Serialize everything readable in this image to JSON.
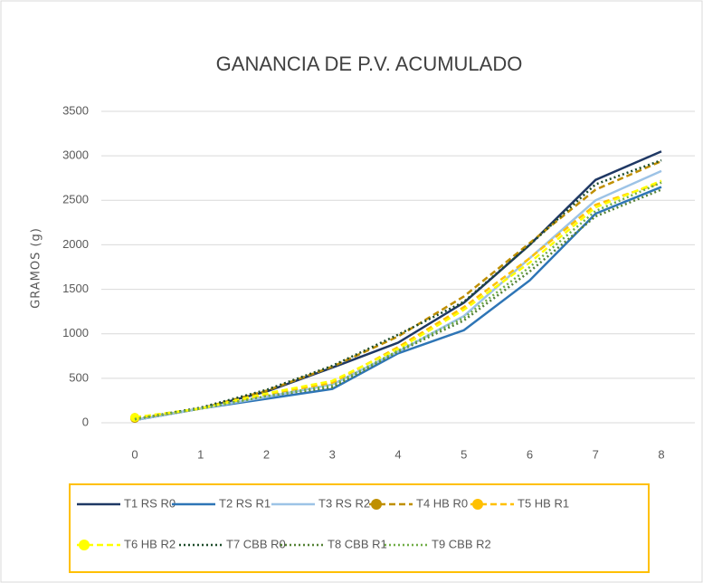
{
  "chart_data": {
    "type": "line",
    "title": "GANANCIA DE P.V. ACUMULADO",
    "y_label": "GRAMOS (g)",
    "x": [
      0,
      1,
      2,
      3,
      4,
      5,
      6,
      7,
      8
    ],
    "xlim": [
      0,
      8
    ],
    "xticks": [
      0,
      1,
      2,
      3,
      4,
      5,
      6,
      7,
      8
    ],
    "ylim": [
      0,
      3500
    ],
    "yticks": [
      0,
      500,
      1000,
      1500,
      2000,
      2500,
      3000,
      3500
    ],
    "grid": true,
    "legend": "bottom",
    "series": [
      {
        "name": "T1 RS R0",
        "color": "#1f3864",
        "dash": "solid",
        "values": [
          30,
          160,
          350,
          620,
          900,
          1350,
          2000,
          2730,
          3050
        ]
      },
      {
        "name": "T2 RS R1",
        "color": "#2e75b6",
        "dash": "solid",
        "values": [
          30,
          160,
          270,
          380,
          780,
          1040,
          1600,
          2350,
          2650
        ]
      },
      {
        "name": "T3 RS R2",
        "color": "#9dc3e6",
        "dash": "solid",
        "values": [
          30,
          160,
          290,
          430,
          800,
          1200,
          1850,
          2500,
          2830
        ]
      },
      {
        "name": "T4 HB R0",
        "color": "#bf8f00",
        "dash": "dashed",
        "marker": "circle",
        "values": [
          50,
          160,
          360,
          630,
          970,
          1420,
          2020,
          2620,
          2940
        ]
      },
      {
        "name": "T5 HB R1",
        "color": "#ffc000",
        "dash": "dashed",
        "marker": "circle",
        "values": [
          60,
          160,
          320,
          450,
          850,
          1300,
          1850,
          2450,
          2700
        ]
      },
      {
        "name": "T6 HB R2",
        "color": "#ffff00",
        "dash": "dashed",
        "marker": "circle",
        "values": [
          60,
          160,
          330,
          470,
          830,
          1270,
          1800,
          2420,
          2720
        ]
      },
      {
        "name": "T7 CBB R0",
        "color": "#1e4d2b",
        "dash": "dotted",
        "values": [
          40,
          170,
          370,
          640,
          990,
          1360,
          2000,
          2680,
          2950
        ]
      },
      {
        "name": "T8 CBB R1",
        "color": "#548235",
        "dash": "dotted",
        "values": [
          40,
          160,
          300,
          400,
          800,
          1150,
          1700,
          2320,
          2620
        ]
      },
      {
        "name": "T9 CBB R2",
        "color": "#70ad47",
        "dash": "dotted",
        "values": [
          40,
          160,
          300,
          420,
          810,
          1180,
          1750,
          2380,
          2700
        ]
      }
    ]
  }
}
